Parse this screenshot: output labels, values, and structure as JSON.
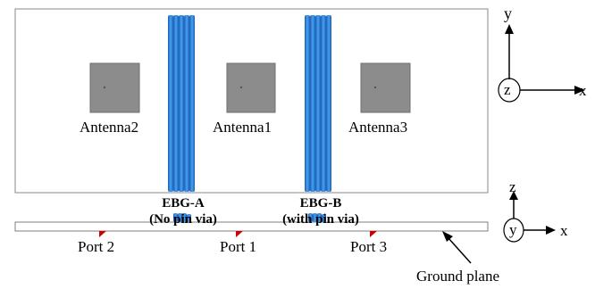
{
  "top_view": {
    "antennas": [
      {
        "label": "Antenna2"
      },
      {
        "label": "Antenna1"
      },
      {
        "label": "Antenna3"
      }
    ],
    "ebg_labels": [
      {
        "line1": "EBG-A",
        "line2": "(No pin via)"
      },
      {
        "line1": "EBG-B",
        "line2": "(with pin via)"
      }
    ],
    "axes": {
      "vertical": "y",
      "horizontal": "x",
      "center": "z"
    }
  },
  "side_view": {
    "ports": [
      {
        "label": "Port 2"
      },
      {
        "label": "Port 1"
      },
      {
        "label": "Port 3"
      }
    ],
    "ground_plane_label": "Ground plane",
    "axes": {
      "vertical": "z",
      "horizontal": "x",
      "center": "y"
    }
  },
  "colors": {
    "substrate_border": "#7f7f7f",
    "patch": "#8c8c8c",
    "ebg": "#2f7fd8",
    "port": "#cc0000"
  }
}
